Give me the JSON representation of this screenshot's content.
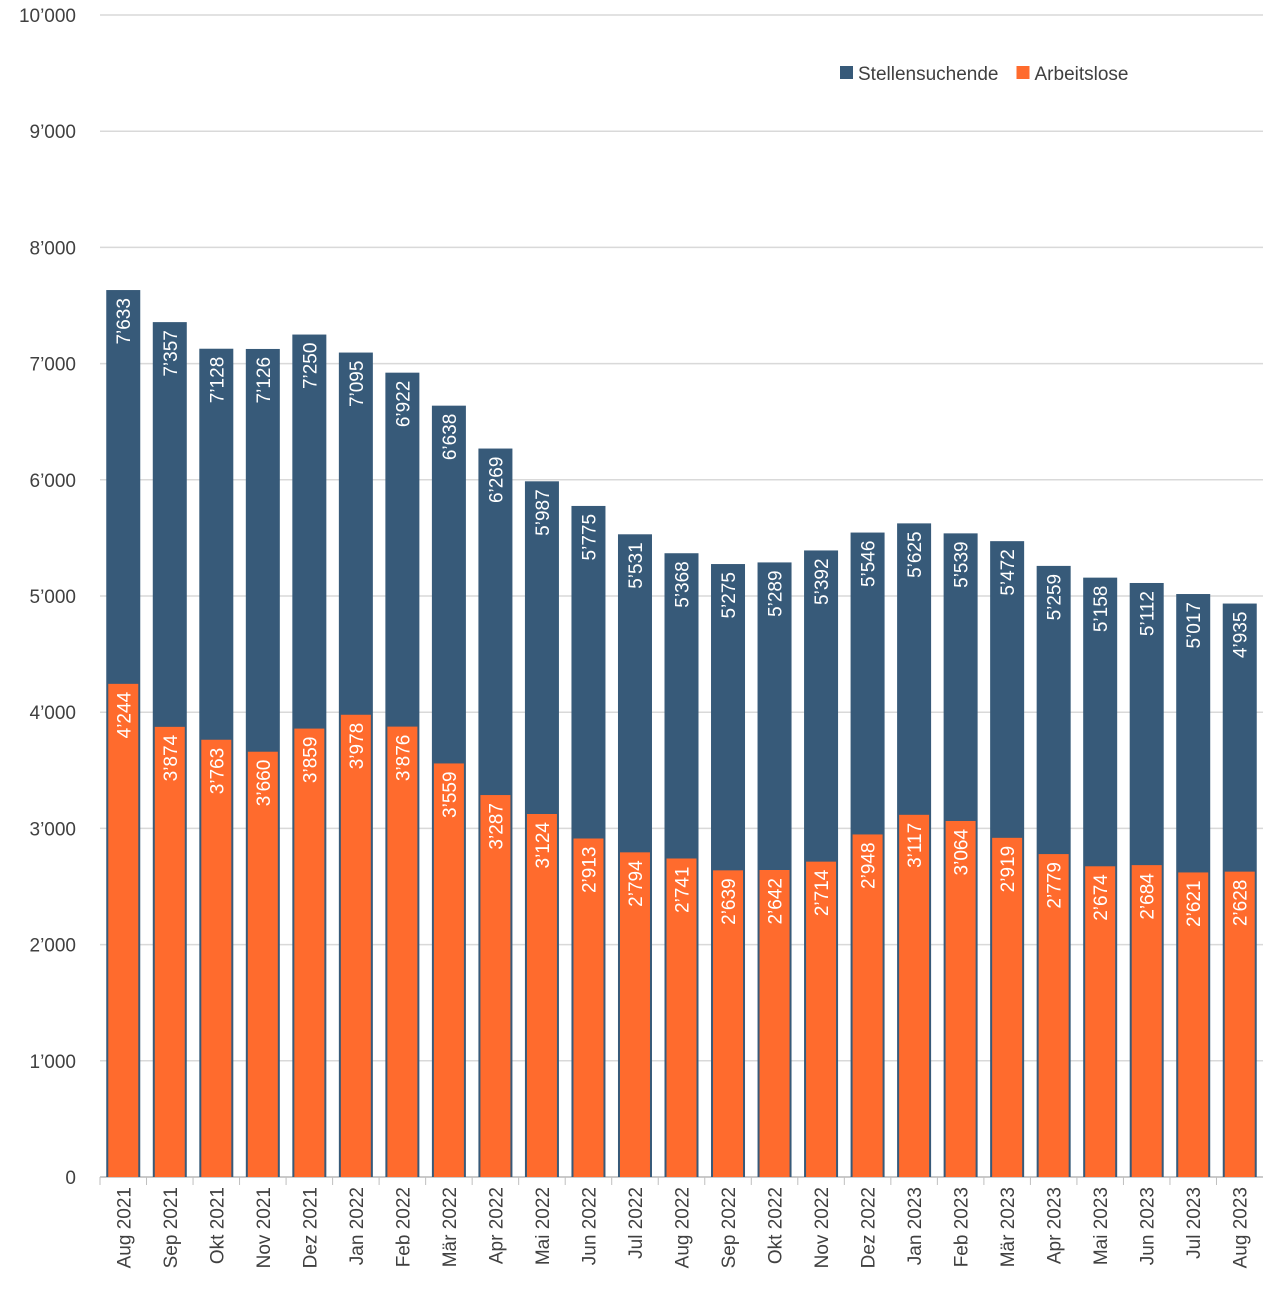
{
  "chart_data": {
    "type": "overlap-bar",
    "categories": [
      "Aug 2021",
      "Sep 2021",
      "Okt 2021",
      "Nov 2021",
      "Dez 2021",
      "Jan 2022",
      "Feb 2022",
      "Mär 2022",
      "Apr 2022",
      "Mai 2022",
      "Jun 2022",
      "Jul 2022",
      "Aug 2022",
      "Sep 2022",
      "Okt 2022",
      "Nov 2022",
      "Dez 2022",
      "Jan 2023",
      "Feb 2023",
      "Mär 2023",
      "Apr 2023",
      "Mai 2023",
      "Jun 2023",
      "Jul 2023",
      "Aug 2023"
    ],
    "series": [
      {
        "name": "Stellensuchende",
        "color": "#375a79",
        "values": [
          7633,
          7357,
          7128,
          7126,
          7250,
          7095,
          6922,
          6638,
          6269,
          5987,
          5775,
          5531,
          5368,
          5275,
          5289,
          5392,
          5546,
          5625,
          5539,
          5472,
          5259,
          5158,
          5112,
          5017,
          4935
        ],
        "value_labels": [
          "7’633",
          "7’357",
          "7’128",
          "7’126",
          "7’250",
          "7’095",
          "6’922",
          "6’638",
          "6’269",
          "5’987",
          "5’775",
          "5’531",
          "5’368",
          "5’275",
          "5’289",
          "5’392",
          "5’546",
          "5’625",
          "5’539",
          "5’472",
          "5’259",
          "5’158",
          "5’112",
          "5’017",
          "4’935"
        ]
      },
      {
        "name": "Arbeitslose",
        "color": "#ff6b2d",
        "values": [
          4244,
          3874,
          3763,
          3660,
          3859,
          3978,
          3876,
          3559,
          3287,
          3124,
          2913,
          2794,
          2741,
          2639,
          2642,
          2714,
          2948,
          3117,
          3064,
          2919,
          2779,
          2674,
          2684,
          2621,
          2628
        ],
        "value_labels": [
          "4’244",
          "3’874",
          "3’763",
          "3’660",
          "3’859",
          "3’978",
          "3’876",
          "3’559",
          "3’287",
          "3’124",
          "2’913",
          "2’794",
          "2’741",
          "2’639",
          "2’642",
          "2’714",
          "2’948",
          "3’117",
          "3’064",
          "2’919",
          "2’779",
          "2’674",
          "2’684",
          "2’621",
          "2’628"
        ]
      }
    ],
    "ylim": [
      0,
      10000
    ],
    "yticks": [
      0,
      {
        "value": 1000,
        "label": "1’000"
      },
      {
        "value": 2000,
        "label": "2’000"
      },
      {
        "value": 3000,
        "label": "3’000"
      },
      {
        "value": 4000,
        "label": "4’000"
      },
      {
        "value": 5000,
        "label": "5’000"
      },
      {
        "value": 6000,
        "label": "6’000"
      },
      {
        "value": 7000,
        "label": "7’000"
      },
      {
        "value": 8000,
        "label": "8’000"
      },
      {
        "value": 9000,
        "label": "9’000"
      },
      {
        "value": 10000,
        "label": "10’000"
      }
    ],
    "grid": true
  }
}
